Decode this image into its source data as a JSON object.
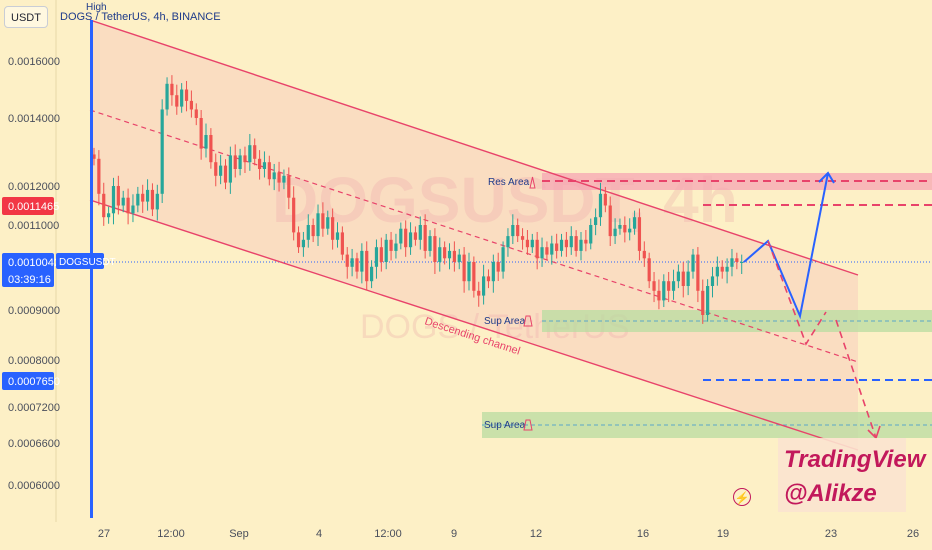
{
  "currency_button": "USDT",
  "symbol_title": "DOGS / TetherUS, 4h, BINANCE",
  "high_label": "High",
  "watermark": {
    "main": "DOGSUSDT, 4h",
    "sub": "DOGS / TetherUS"
  },
  "branding": {
    "line1": "TradingView",
    "line2": "@Alikze"
  },
  "annotations": {
    "res_area": "Res Area",
    "sup_area_1": "Sup Area",
    "sup_area_2": "Sup Area",
    "channel": "Descending channel"
  },
  "price_tags": {
    "red": "0.0011465",
    "current": "0.0010042",
    "current_symbol": "DOGSUSDT",
    "countdown": "03:39:16",
    "blue": "0.0007650"
  },
  "colors": {
    "background": "#fdf0c6",
    "up": "#26a69a",
    "down": "#ef5350",
    "channel": "#e8436a",
    "res_zone": "#f5a5b3",
    "sup_zone": "#b8dca0",
    "projection": "#2962ff",
    "tag_blue": "#2962ff",
    "tag_red": "#f23645"
  },
  "chart_data": {
    "type": "candlestick",
    "y_ticks": [
      "0.0016000",
      "0.0014000",
      "0.0012000",
      "0.0011000",
      "0.0009000",
      "0.0008000",
      "0.0007200",
      "0.0006600",
      "0.0006000"
    ],
    "x_ticks": [
      "27",
      "12:00",
      "Sep",
      "4",
      "12:00",
      "9",
      "12",
      "16",
      "19",
      "23",
      "26"
    ],
    "ylim": [
      0.00055,
      0.00175
    ],
    "close_series": [
      0.00128,
      0.00118,
      0.00112,
      0.00113,
      0.0012,
      0.00115,
      0.00117,
      0.00113,
      0.00115,
      0.00118,
      0.00116,
      0.00119,
      0.00114,
      0.00118,
      0.00143,
      0.00152,
      0.00148,
      0.00144,
      0.0015,
      0.00146,
      0.00143,
      0.0014,
      0.00131,
      0.00135,
      0.00127,
      0.00123,
      0.00126,
      0.00121,
      0.00129,
      0.00125,
      0.00129,
      0.00127,
      0.00132,
      0.00128,
      0.00125,
      0.00127,
      0.00122,
      0.00124,
      0.00121,
      0.00123,
      0.00117,
      0.00108,
      0.00104,
      0.00106,
      0.0011,
      0.00107,
      0.00113,
      0.00109,
      0.00112,
      0.00106,
      0.00108,
      0.00102,
      0.00099,
      0.00101,
      0.00098,
      0.00103,
      0.00096,
      0.00099,
      0.00104,
      0.001,
      0.00106,
      0.00103,
      0.00105,
      0.00109,
      0.00104,
      0.00108,
      0.00106,
      0.0011,
      0.00103,
      0.00107,
      0.001,
      0.00104,
      0.00101,
      0.00103,
      0.001,
      0.00102,
      0.00096,
      0.001,
      0.00094,
      0.00093,
      0.00097,
      0.00096,
      0.001,
      0.00098,
      0.00104,
      0.00107,
      0.0011,
      0.00107,
      0.00106,
      0.00104,
      0.00106,
      0.00101,
      0.00104,
      0.00102,
      0.00105,
      0.00103,
      0.00106,
      0.00104,
      0.00107,
      0.00103,
      0.00106,
      0.00105,
      0.0011,
      0.00112,
      0.00118,
      0.00115,
      0.00107,
      0.00109,
      0.0011,
      0.00108,
      0.00109,
      0.00112,
      0.00103,
      0.00101,
      0.00096,
      0.00094,
      0.00092,
      0.00096,
      0.00094,
      0.00096,
      0.00098,
      0.00095,
      0.00098,
      0.00102,
      0.00094,
      0.00089,
      0.00095,
      0.00097,
      0.00099,
      0.00098,
      0.00099,
      0.00101,
      0.001,
      0.001
    ]
  }
}
